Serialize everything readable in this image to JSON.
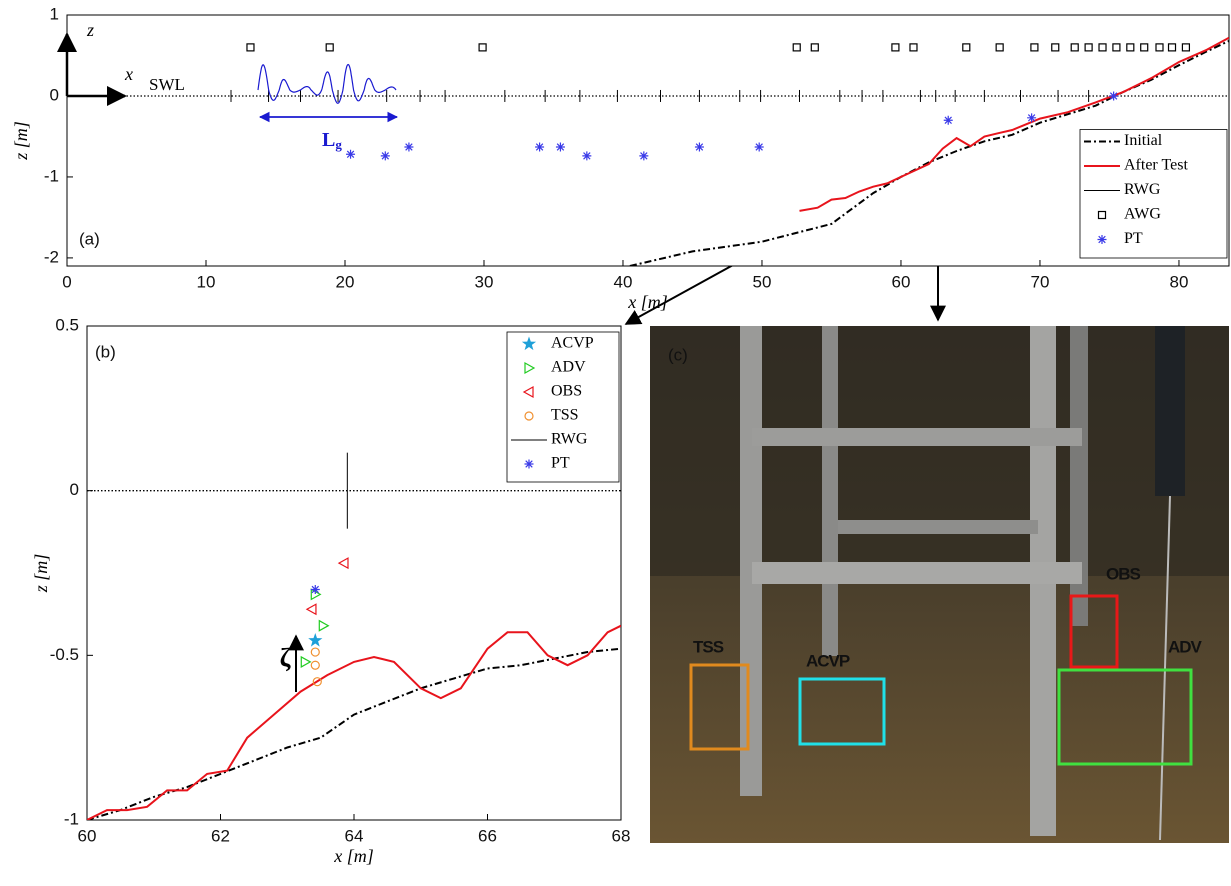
{
  "chart_data": [
    {
      "type": "line",
      "label": "(a)",
      "xlabel": "x [m]",
      "ylabel": "z [m]",
      "xlim": [
        0,
        83.6
      ],
      "ylim": [
        -2.1,
        1
      ],
      "xticks": [
        0,
        10,
        20,
        30,
        40,
        50,
        60,
        70,
        80
      ],
      "yticks": [
        -2,
        -1,
        0,
        1
      ],
      "legend": "lower right",
      "annotations": {
        "swl": "SWL",
        "x_axis": "x",
        "z_axis": "z",
        "group_length": "L",
        "group_length_sub": "g"
      },
      "series": [
        {
          "name": "Initial",
          "color": "#000000",
          "style": "dashdot",
          "x": [
            40.5,
            45,
            50,
            55,
            58,
            60,
            62,
            64,
            66,
            68,
            70,
            74,
            76,
            78,
            80,
            82,
            83.6
          ],
          "values": [
            -2.1,
            -1.92,
            -1.8,
            -1.58,
            -1.2,
            -1.0,
            -0.82,
            -0.68,
            -0.56,
            -0.48,
            -0.33,
            -0.12,
            0.05,
            0.2,
            0.38,
            0.55,
            0.68
          ]
        },
        {
          "name": "After Test",
          "color": "#e8141c",
          "style": "solid",
          "x": [
            52.7,
            54,
            55,
            56,
            57,
            58,
            59,
            60,
            61,
            62,
            63,
            64,
            65,
            66,
            67,
            68,
            69,
            70,
            72,
            74,
            76,
            78,
            80,
            82,
            83.6
          ],
          "values": [
            -1.42,
            -1.38,
            -1.28,
            -1.26,
            -1.18,
            -1.12,
            -1.08,
            -1.0,
            -0.92,
            -0.84,
            -0.65,
            -0.52,
            -0.62,
            -0.5,
            -0.46,
            -0.42,
            -0.35,
            -0.28,
            -0.2,
            -0.08,
            0.05,
            0.22,
            0.42,
            0.57,
            0.72
          ]
        },
        {
          "name": "RWG",
          "color": "#000000",
          "style": "tick",
          "x": [
            11.8,
            14.5,
            16.8,
            19.5,
            23.0,
            25.4,
            27.2,
            31.5,
            34.4,
            36.9,
            39.6,
            42.7,
            45.5,
            48.4,
            49.9,
            52.7,
            55.6,
            57.2,
            58.7,
            61.4,
            62.5,
            63.9,
            66.0,
            68.6,
            71.3,
            73.5
          ],
          "values": [
            0,
            0,
            0,
            0,
            0,
            0,
            0,
            0,
            0,
            0,
            0,
            0,
            0,
            0,
            0,
            0,
            0,
            0,
            0,
            0,
            0,
            0,
            0,
            0,
            0,
            0
          ]
        },
        {
          "name": "AWG",
          "color": "#000000",
          "style": "square",
          "x": [
            13.2,
            18.9,
            29.9,
            52.5,
            53.8,
            59.6,
            60.9,
            64.7,
            67.1,
            69.6,
            71.1,
            72.5,
            73.5,
            74.5,
            75.5,
            76.5,
            77.5,
            78.6,
            79.5,
            80.5
          ],
          "values": [
            0.6,
            0.6,
            0.6,
            0.6,
            0.6,
            0.6,
            0.6,
            0.6,
            0.6,
            0.6,
            0.6,
            0.6,
            0.6,
            0.6,
            0.6,
            0.6,
            0.6,
            0.6,
            0.6,
            0.6
          ]
        },
        {
          "name": "PT",
          "color": "#3a3ae8",
          "style": "asterisk",
          "x": [
            20.4,
            22.9,
            24.6,
            34.0,
            35.5,
            37.4,
            41.5,
            45.5,
            49.8,
            63.4,
            69.4,
            75.3
          ],
          "values": [
            -0.72,
            -0.74,
            -0.63,
            -0.63,
            -0.63,
            -0.74,
            -0.74,
            -0.63,
            -0.63,
            -0.3,
            -0.27,
            0.0
          ]
        }
      ]
    },
    {
      "type": "line",
      "label": "(b)",
      "xlabel": "x [m]",
      "ylabel": "z [m]",
      "xlim": [
        60,
        68
      ],
      "ylim": [
        -1,
        0.5
      ],
      "xticks": [
        60,
        62,
        64,
        66,
        68
      ],
      "yticks": [
        -1,
        -0.5,
        0,
        0.5
      ],
      "legend": "upper right",
      "annotations": {
        "elevation": "ζ"
      },
      "series": [
        {
          "name": "Initial",
          "color": "#000000",
          "style": "dashdot",
          "legend": false,
          "x": [
            60,
            60.5,
            61,
            61.5,
            62,
            62.5,
            63,
            63.5,
            64,
            64.5,
            65,
            65.5,
            66,
            66.5,
            67,
            67.5,
            68
          ],
          "values": [
            -1,
            -0.97,
            -0.93,
            -0.9,
            -0.86,
            -0.82,
            -0.78,
            -0.75,
            -0.68,
            -0.64,
            -0.6,
            -0.57,
            -0.54,
            -0.53,
            -0.51,
            -0.49,
            -0.48
          ]
        },
        {
          "name": "After Test",
          "color": "#e8141c",
          "style": "solid",
          "legend": false,
          "x": [
            60,
            60.3,
            60.6,
            60.9,
            61.2,
            61.5,
            61.8,
            62.1,
            62.4,
            62.8,
            63.2,
            63.6,
            64,
            64.3,
            64.6,
            65,
            65.3,
            65.6,
            66,
            66.3,
            66.6,
            66.9,
            67.2,
            67.5,
            67.8,
            68
          ],
          "values": [
            -1,
            -0.97,
            -0.97,
            -0.96,
            -0.91,
            -0.91,
            -0.86,
            -0.85,
            -0.75,
            -0.68,
            -0.61,
            -0.56,
            -0.52,
            -0.505,
            -0.52,
            -0.6,
            -0.63,
            -0.6,
            -0.48,
            -0.43,
            -0.43,
            -0.5,
            -0.53,
            -0.5,
            -0.43,
            -0.41
          ]
        },
        {
          "name": "ACVP",
          "color": "#1ea0d8",
          "style": "star",
          "x": [
            63.42
          ],
          "values": [
            -0.455
          ]
        },
        {
          "name": "ADV",
          "color": "#22cc22",
          "style": "triangle-right",
          "x": [
            63.42,
            63.54,
            63.27
          ],
          "values": [
            -0.315,
            -0.41,
            -0.52
          ]
        },
        {
          "name": "OBS",
          "color": "#e8141c",
          "style": "triangle-left",
          "x": [
            63.85,
            63.37
          ],
          "values": [
            -0.22,
            -0.36
          ]
        },
        {
          "name": "TSS",
          "color": "#f09030",
          "style": "circle",
          "x": [
            63.42,
            63.42,
            63.45
          ],
          "values": [
            -0.49,
            -0.53,
            -0.58
          ]
        },
        {
          "name": "RWG",
          "color": "#000000",
          "style": "tick",
          "x": [
            63.9
          ],
          "values": [
            0
          ]
        },
        {
          "name": "PT",
          "color": "#3a3ae8",
          "style": "asterisk",
          "x": [
            63.42
          ],
          "values": [
            -0.3
          ]
        }
      ]
    }
  ],
  "photo": {
    "label": "(c)",
    "boxes": [
      {
        "label": "TSS",
        "color": "#e08a1e"
      },
      {
        "label": "ACVP",
        "color": "#20e0e8"
      },
      {
        "label": "OBS",
        "color": "#e81818"
      },
      {
        "label": "ADV",
        "color": "#40e040"
      }
    ]
  }
}
